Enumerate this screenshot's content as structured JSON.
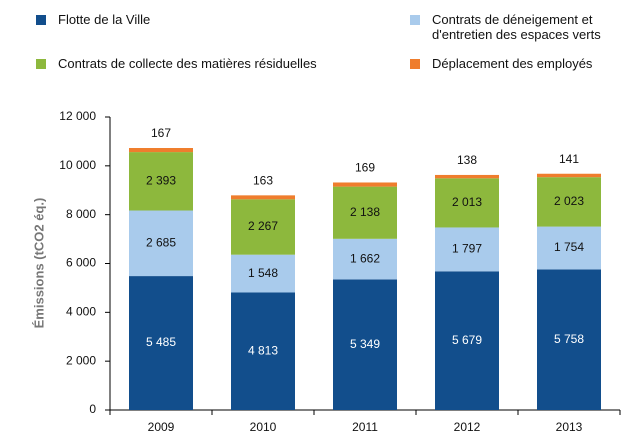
{
  "chart_data": {
    "type": "stacked_bar",
    "y_label": "Émissions (tCO2 éq.)",
    "categories": [
      "2009",
      "2010",
      "2011",
      "2012",
      "2013"
    ],
    "series": [
      {
        "name": "Flotte de la Ville",
        "color": "#124e8c",
        "values": [
          5485,
          4813,
          5349,
          5679,
          5758
        ],
        "value_labels": [
          "5 485",
          "4 813",
          "5 349",
          "5 679",
          "5 758"
        ]
      },
      {
        "name": "Contrats de déneigement et d'entretien des espaces verts",
        "color": "#a9cbec",
        "values": [
          2685,
          1548,
          1662,
          1797,
          1754
        ],
        "value_labels": [
          "2 685",
          "1 548",
          "1 662",
          "1 797",
          "1 754"
        ]
      },
      {
        "name": "Contrats de collecte des matières résiduelles",
        "color": "#8db83d",
        "values": [
          2393,
          2267,
          2138,
          2013,
          2023
        ],
        "value_labels": [
          "2 393",
          "2 267",
          "2 138",
          "2 013",
          "2 023"
        ]
      },
      {
        "name": "Déplacement des employés",
        "color": "#ef7d2d",
        "values": [
          167,
          163,
          169,
          138,
          141
        ]
      }
    ],
    "ylim": [
      0,
      12000
    ],
    "yticks": [
      0,
      {
        "value": 2000,
        "label": "2 000"
      },
      {
        "value": 4000,
        "label": "4 000"
      },
      {
        "value": 6000,
        "label": "6 000"
      },
      {
        "value": 8000,
        "label": "8 000"
      },
      {
        "value": 10000,
        "label": "10 000"
      },
      {
        "value": 12000,
        "label": "12 000"
      }
    ]
  }
}
